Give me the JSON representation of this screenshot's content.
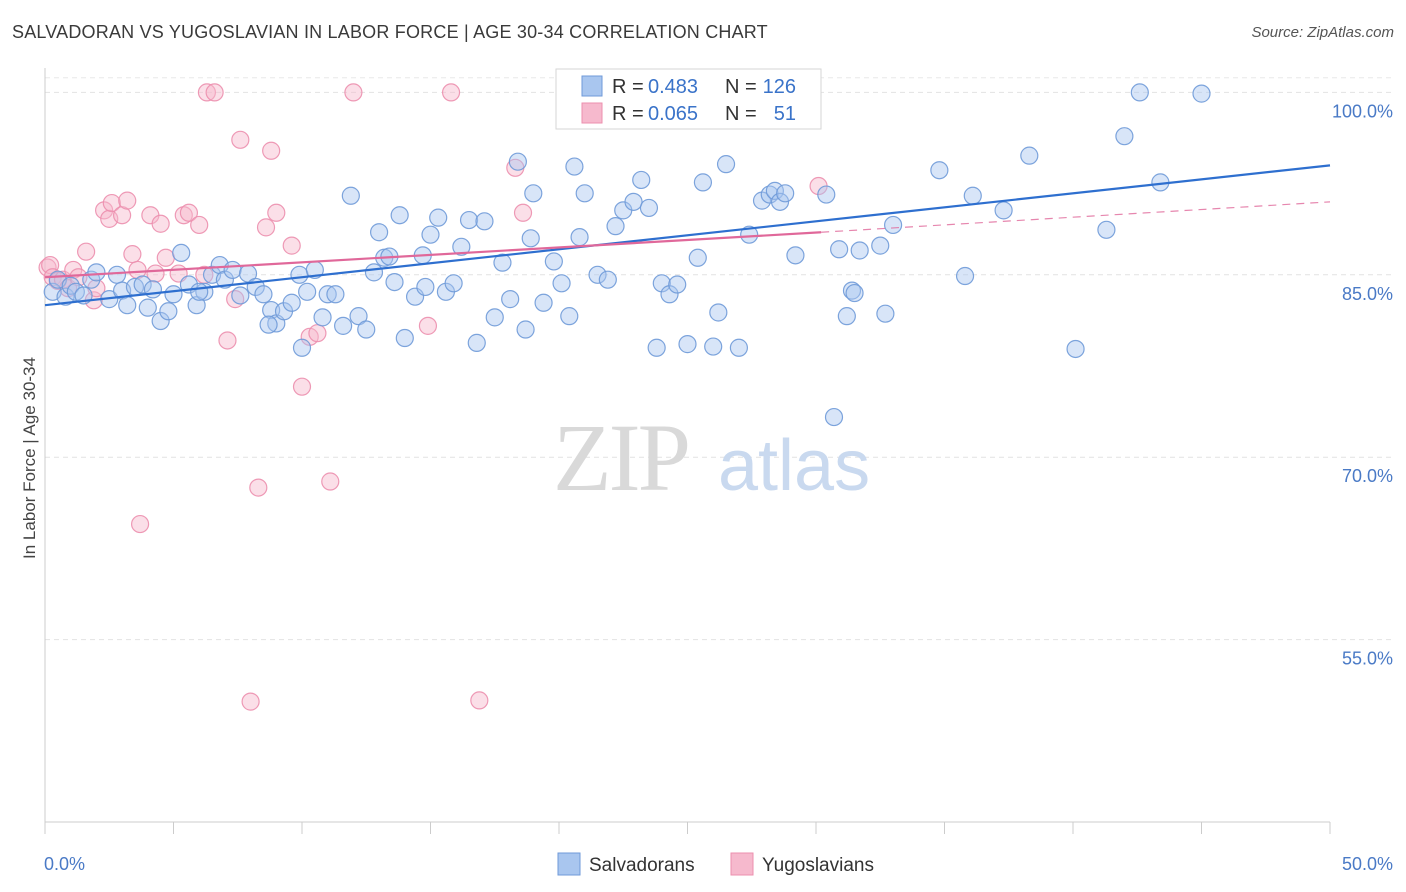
{
  "header": {
    "title": "SALVADORAN VS YUGOSLAVIAN IN LABOR FORCE | AGE 30-34 CORRELATION CHART",
    "source": "Source: ZipAtlas.com"
  },
  "watermark": {
    "zip": "ZIP",
    "atlas": "atlas"
  },
  "legend": {
    "r_label": "R =",
    "n_label": "N =",
    "rows": [
      {
        "r": "0.483",
        "n": "126"
      },
      {
        "r": "0.065",
        "n": "51"
      }
    ]
  },
  "chart_data": {
    "type": "scatter",
    "title": "SALVADORAN VS YUGOSLAVIAN IN LABOR FORCE | AGE 30-34 CORRELATION CHART",
    "ylabel": "In Labor Force | Age 30-34",
    "xlabel": "",
    "xlim": [
      0,
      50
    ],
    "ylim": [
      40,
      102.5
    ],
    "x_tick_labels": [
      "0.0%",
      "50.0%"
    ],
    "y_ticks": [
      {
        "value": 100,
        "label": "100.0%"
      },
      {
        "value": 85,
        "label": "85.0%"
      },
      {
        "value": 70,
        "label": "70.0%"
      },
      {
        "value": 55,
        "label": "55.0%"
      }
    ],
    "grid": true,
    "legend_position": "top-center",
    "colors": {
      "salvadorans_fill": "#a9c6ef",
      "salvadorans_stroke": "#6f9ad8",
      "salvadorans_line": "#2e6fcf",
      "yugoslavians_fill": "#f6b9cd",
      "yugoslavians_stroke": "#ec8fae",
      "yugoslavians_line": "#e0689a"
    },
    "series": [
      {
        "name": "Salvadorans",
        "r": 0.483,
        "n": 126,
        "trend": {
          "x0": 0,
          "y0": 82.5,
          "x1": 50,
          "y1": 94.0
        },
        "points": [
          [
            0.3,
            83.6
          ],
          [
            0.5,
            84.6
          ],
          [
            0.8,
            83.2
          ],
          [
            1.0,
            84.1
          ],
          [
            1.2,
            83.6
          ],
          [
            1.5,
            83.3
          ],
          [
            1.8,
            84.6
          ],
          [
            2.0,
            85.2
          ],
          [
            2.5,
            83.0
          ],
          [
            2.8,
            85.0
          ],
          [
            3.0,
            83.7
          ],
          [
            3.2,
            82.5
          ],
          [
            3.5,
            84.0
          ],
          [
            3.8,
            84.2
          ],
          [
            4.0,
            82.3
          ],
          [
            4.2,
            83.8
          ],
          [
            4.5,
            81.2
          ],
          [
            4.8,
            82.0
          ],
          [
            5.0,
            83.4
          ],
          [
            5.3,
            86.8
          ],
          [
            5.6,
            84.2
          ],
          [
            5.9,
            82.5
          ],
          [
            6.2,
            83.6
          ],
          [
            6.5,
            85.0
          ],
          [
            6.8,
            85.8
          ],
          [
            7.0,
            84.6
          ],
          [
            7.3,
            85.4
          ],
          [
            7.6,
            83.3
          ],
          [
            7.9,
            85.1
          ],
          [
            8.2,
            84.0
          ],
          [
            8.5,
            83.4
          ],
          [
            8.8,
            82.1
          ],
          [
            9.0,
            81.0
          ],
          [
            9.3,
            82.0
          ],
          [
            9.6,
            82.7
          ],
          [
            9.9,
            85.0
          ],
          [
            10.2,
            83.6
          ],
          [
            10.5,
            85.4
          ],
          [
            10.8,
            81.5
          ],
          [
            11.0,
            83.4
          ],
          [
            11.3,
            83.4
          ],
          [
            11.6,
            80.8
          ],
          [
            11.9,
            91.5
          ],
          [
            12.2,
            81.6
          ],
          [
            12.5,
            80.5
          ],
          [
            12.8,
            85.2
          ],
          [
            13.0,
            88.5
          ],
          [
            13.2,
            86.4
          ],
          [
            13.4,
            86.5
          ],
          [
            13.6,
            84.4
          ],
          [
            13.8,
            89.9
          ],
          [
            14.0,
            79.8
          ],
          [
            14.4,
            83.2
          ],
          [
            14.7,
            86.6
          ],
          [
            15.0,
            88.3
          ],
          [
            15.3,
            89.7
          ],
          [
            15.6,
            83.6
          ],
          [
            15.9,
            84.3
          ],
          [
            16.2,
            87.3
          ],
          [
            16.5,
            89.5
          ],
          [
            16.8,
            79.4
          ],
          [
            17.1,
            89.4
          ],
          [
            17.5,
            81.5
          ],
          [
            17.8,
            86.0
          ],
          [
            18.1,
            83.0
          ],
          [
            18.4,
            94.3
          ],
          [
            18.7,
            80.5
          ],
          [
            19.0,
            91.7
          ],
          [
            19.4,
            82.7
          ],
          [
            19.8,
            86.1
          ],
          [
            20.1,
            84.3
          ],
          [
            20.4,
            81.6
          ],
          [
            20.6,
            93.9
          ],
          [
            20.8,
            88.1
          ],
          [
            21.0,
            91.7
          ],
          [
            21.5,
            85.0
          ],
          [
            21.9,
            84.6
          ],
          [
            22.2,
            89.0
          ],
          [
            22.5,
            90.3
          ],
          [
            22.9,
            91.0
          ],
          [
            23.2,
            92.8
          ],
          [
            23.5,
            90.5
          ],
          [
            23.8,
            79.0
          ],
          [
            24.0,
            84.3
          ],
          [
            24.3,
            83.4
          ],
          [
            24.6,
            84.2
          ],
          [
            25.0,
            79.3
          ],
          [
            25.4,
            86.4
          ],
          [
            25.6,
            92.6
          ],
          [
            26.0,
            79.1
          ],
          [
            26.2,
            81.9
          ],
          [
            26.5,
            94.1
          ],
          [
            27.0,
            79.0
          ],
          [
            27.4,
            88.3
          ],
          [
            27.9,
            91.1
          ],
          [
            28.2,
            91.6
          ],
          [
            28.4,
            91.9
          ],
          [
            28.6,
            91.0
          ],
          [
            28.8,
            91.7
          ],
          [
            29.2,
            86.6
          ],
          [
            30.4,
            91.6
          ],
          [
            30.7,
            73.3
          ],
          [
            30.9,
            87.1
          ],
          [
            31.2,
            81.6
          ],
          [
            31.4,
            83.7
          ],
          [
            31.7,
            87.0
          ],
          [
            32.5,
            87.4
          ],
          [
            32.7,
            81.8
          ],
          [
            33.0,
            89.1
          ],
          [
            34.8,
            93.6
          ],
          [
            35.8,
            84.9
          ],
          [
            36.1,
            91.5
          ],
          [
            37.3,
            90.3
          ],
          [
            38.3,
            94.8
          ],
          [
            40.1,
            78.9
          ],
          [
            41.3,
            88.7
          ],
          [
            42.0,
            96.4
          ],
          [
            42.6,
            100.0
          ],
          [
            43.4,
            92.6
          ],
          [
            45.0,
            99.9
          ],
          [
            31.5,
            83.5
          ],
          [
            14.8,
            84.0
          ],
          [
            8.7,
            80.9
          ],
          [
            18.9,
            88.0
          ],
          [
            6.0,
            83.6
          ],
          [
            10.0,
            79.0
          ]
        ]
      },
      {
        "name": "Yugoslavians",
        "r": 0.065,
        "n": 51,
        "trend": {
          "x0": 0,
          "y0": 84.8,
          "x1": 30.2,
          "y1": 88.5
        },
        "trend_dashed": {
          "x0": 30.2,
          "y0": 88.5,
          "x1": 50,
          "y1": 91.0
        },
        "points": [
          [
            0.1,
            85.6
          ],
          [
            0.2,
            85.8
          ],
          [
            0.3,
            84.8
          ],
          [
            0.5,
            84.5
          ],
          [
            0.7,
            84.6
          ],
          [
            0.9,
            83.9
          ],
          [
            1.1,
            85.4
          ],
          [
            1.3,
            84.8
          ],
          [
            1.6,
            86.9
          ],
          [
            1.9,
            82.9
          ],
          [
            2.0,
            83.9
          ],
          [
            2.3,
            90.3
          ],
          [
            2.5,
            89.6
          ],
          [
            2.6,
            90.9
          ],
          [
            3.0,
            89.9
          ],
          [
            3.2,
            91.1
          ],
          [
            3.4,
            86.7
          ],
          [
            3.6,
            85.4
          ],
          [
            3.7,
            64.5
          ],
          [
            4.1,
            89.9
          ],
          [
            4.3,
            85.1
          ],
          [
            4.5,
            89.2
          ],
          [
            4.7,
            86.4
          ],
          [
            5.2,
            85.1
          ],
          [
            5.4,
            89.9
          ],
          [
            5.6,
            90.1
          ],
          [
            6.0,
            89.1
          ],
          [
            6.2,
            85.0
          ],
          [
            6.3,
            100.0
          ],
          [
            6.6,
            100.0
          ],
          [
            7.1,
            79.6
          ],
          [
            7.4,
            83.0
          ],
          [
            7.6,
            96.1
          ],
          [
            8.0,
            49.9
          ],
          [
            8.3,
            67.5
          ],
          [
            8.6,
            88.9
          ],
          [
            8.8,
            95.2
          ],
          [
            9.0,
            90.1
          ],
          [
            9.6,
            87.4
          ],
          [
            10.0,
            75.8
          ],
          [
            10.3,
            79.9
          ],
          [
            10.6,
            80.2
          ],
          [
            11.1,
            68.0
          ],
          [
            12.0,
            100.0
          ],
          [
            14.9,
            80.8
          ],
          [
            15.8,
            100.0
          ],
          [
            16.9,
            50.0
          ],
          [
            18.3,
            93.8
          ],
          [
            18.6,
            90.1
          ],
          [
            26.0,
            100.0
          ],
          [
            30.1,
            92.3
          ]
        ]
      }
    ]
  },
  "bottom_legend": [
    {
      "label": "Salvadorans"
    },
    {
      "label": "Yugoslavians"
    }
  ]
}
